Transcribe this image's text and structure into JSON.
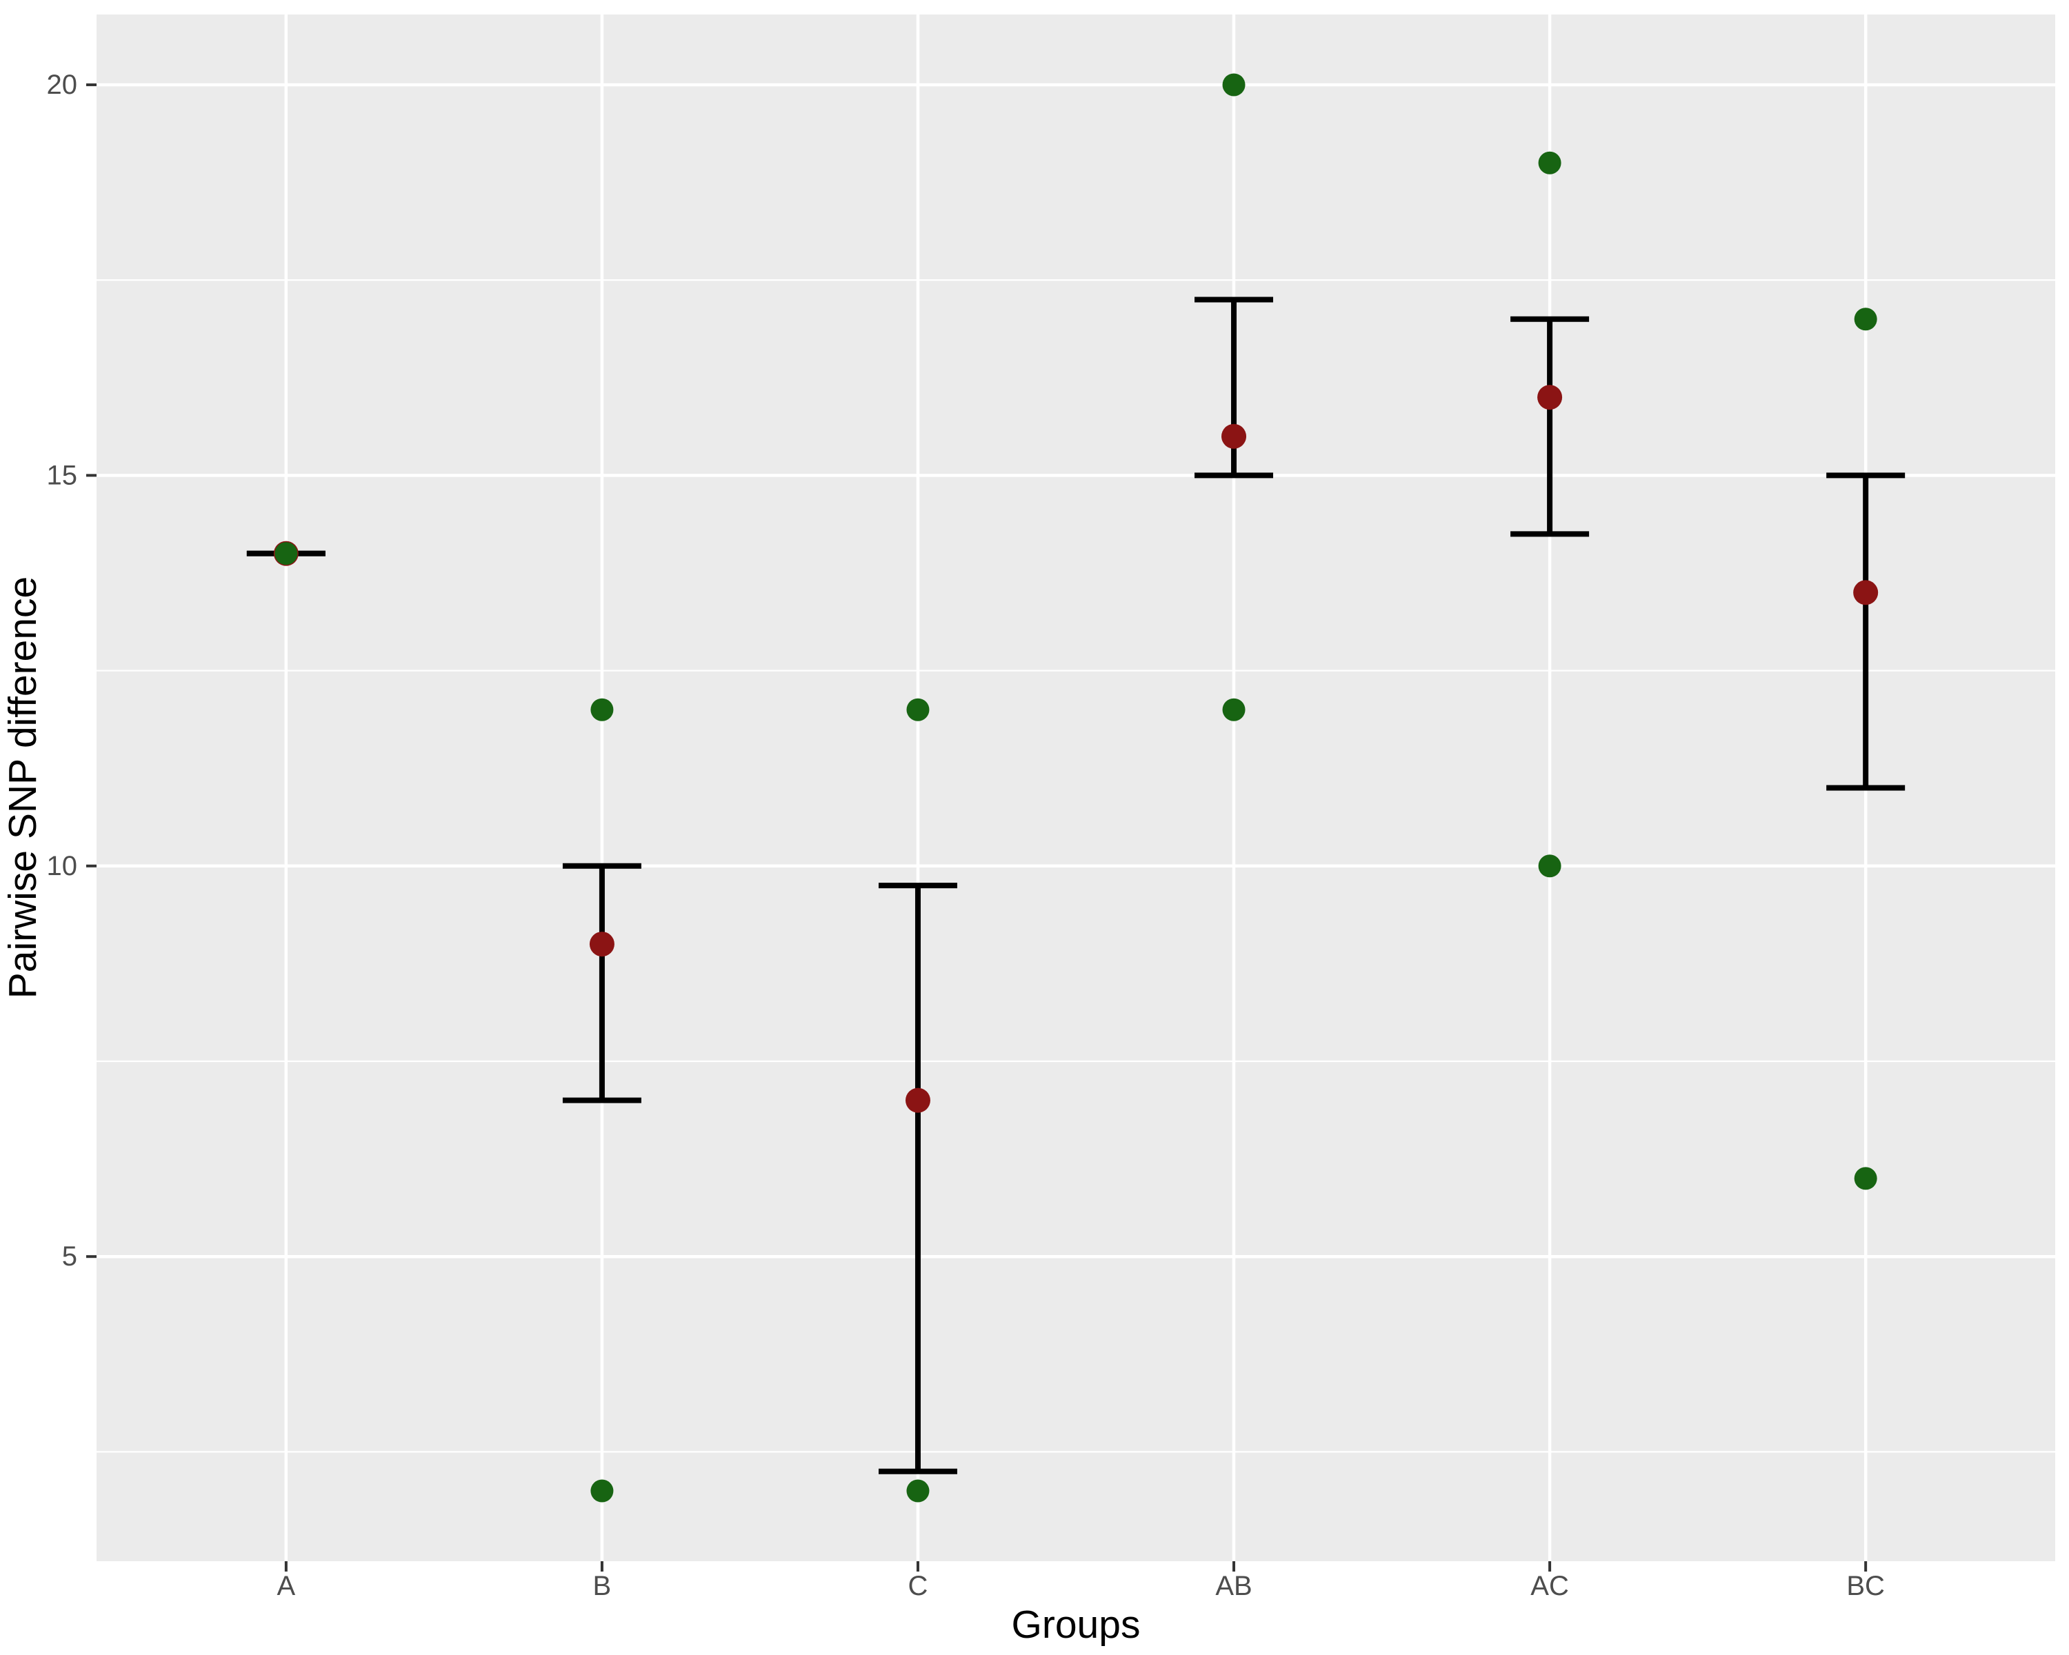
{
  "chart_data": {
    "type": "scatter",
    "title": "",
    "xlabel": "Groups",
    "ylabel": "Pairwise SNP difference",
    "categories": [
      "A",
      "B",
      "C",
      "AB",
      "AC",
      "BC"
    ],
    "y_ticks": [
      5,
      10,
      15,
      20
    ],
    "y_minor_ticks": [
      2.5,
      7.5,
      12.5,
      17.5
    ],
    "ylim": [
      1.1,
      20.9
    ],
    "grid": true,
    "legend_position": "none",
    "panel_background": "#EBEBEB",
    "gridline_color": "#FFFFFF",
    "tick_color": "#333333",
    "tick_label_color": "#4D4D4D",
    "axis_title_color": "#000000",
    "point_color": "#176412",
    "mean_color": "#8B1414",
    "errorbar_color": "#000000",
    "series": [
      {
        "group": "A",
        "points": [
          14
        ],
        "mean": 14,
        "lower": 14,
        "upper": 14
      },
      {
        "group": "B",
        "points": [
          12,
          2
        ],
        "mean": 9,
        "lower": 7,
        "upper": 10
      },
      {
        "group": "C",
        "points": [
          12,
          2
        ],
        "mean": 7,
        "lower": 2.25,
        "upper": 9.75
      },
      {
        "group": "AB",
        "points": [
          20,
          12
        ],
        "mean": 15.5,
        "lower": 15,
        "upper": 17.25
      },
      {
        "group": "AC",
        "points": [
          19,
          10
        ],
        "mean": 16,
        "lower": 14.25,
        "upper": 17
      },
      {
        "group": "BC",
        "points": [
          17,
          6
        ],
        "mean": 13.5,
        "lower": 11,
        "upper": 15
      }
    ]
  }
}
